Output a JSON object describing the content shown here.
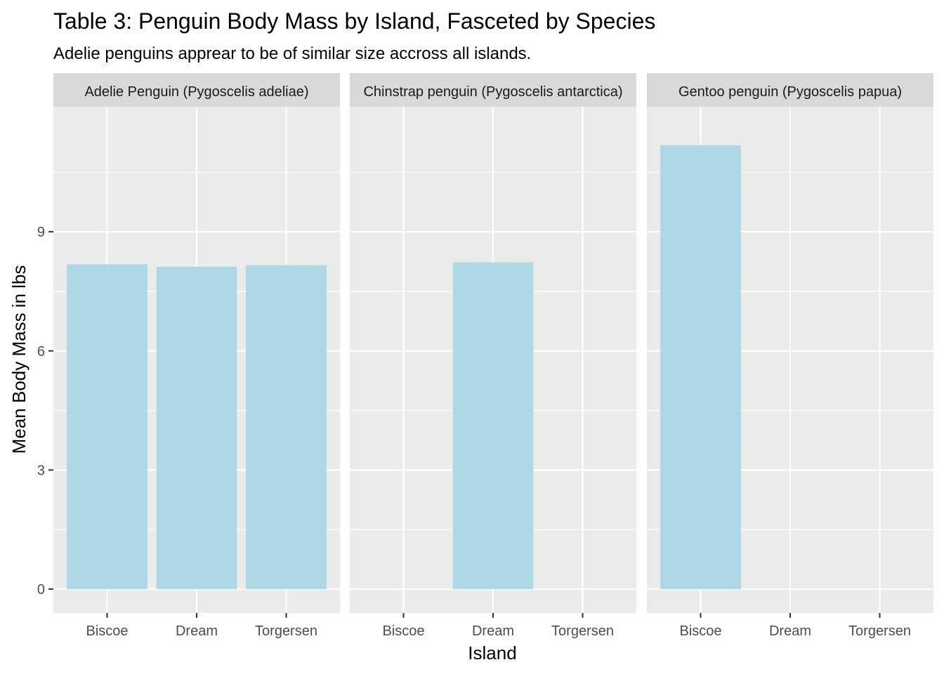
{
  "chart_data": {
    "type": "bar",
    "title": "Table 3: Penguin Body Mass by Island, Fasceted by Species",
    "subtitle": "Adelie penguins apprear to be of similar size accross all islands.",
    "xlabel": "Island",
    "ylabel": "Mean Body Mass in lbs",
    "ylim": [
      -0.6,
      12.15
    ],
    "y_ticks": [
      0,
      3,
      6,
      9
    ],
    "grid": true,
    "legend": "none",
    "bar_color": "#ADD8E6",
    "panel_background": "#EBEBEB",
    "strip_background": "#D9D9D9",
    "categories": [
      "Biscoe",
      "Dream",
      "Torgersen"
    ],
    "facets": [
      {
        "label": "Adelie Penguin (Pygoscelis adeliae)",
        "values": [
          8.18,
          8.12,
          8.16
        ]
      },
      {
        "label": "Chinstrap penguin (Pygoscelis antarctica)",
        "values": [
          null,
          8.23,
          null
        ]
      },
      {
        "label": "Gentoo penguin (Pygoscelis papua)",
        "values": [
          11.18,
          null,
          null
        ]
      }
    ]
  }
}
